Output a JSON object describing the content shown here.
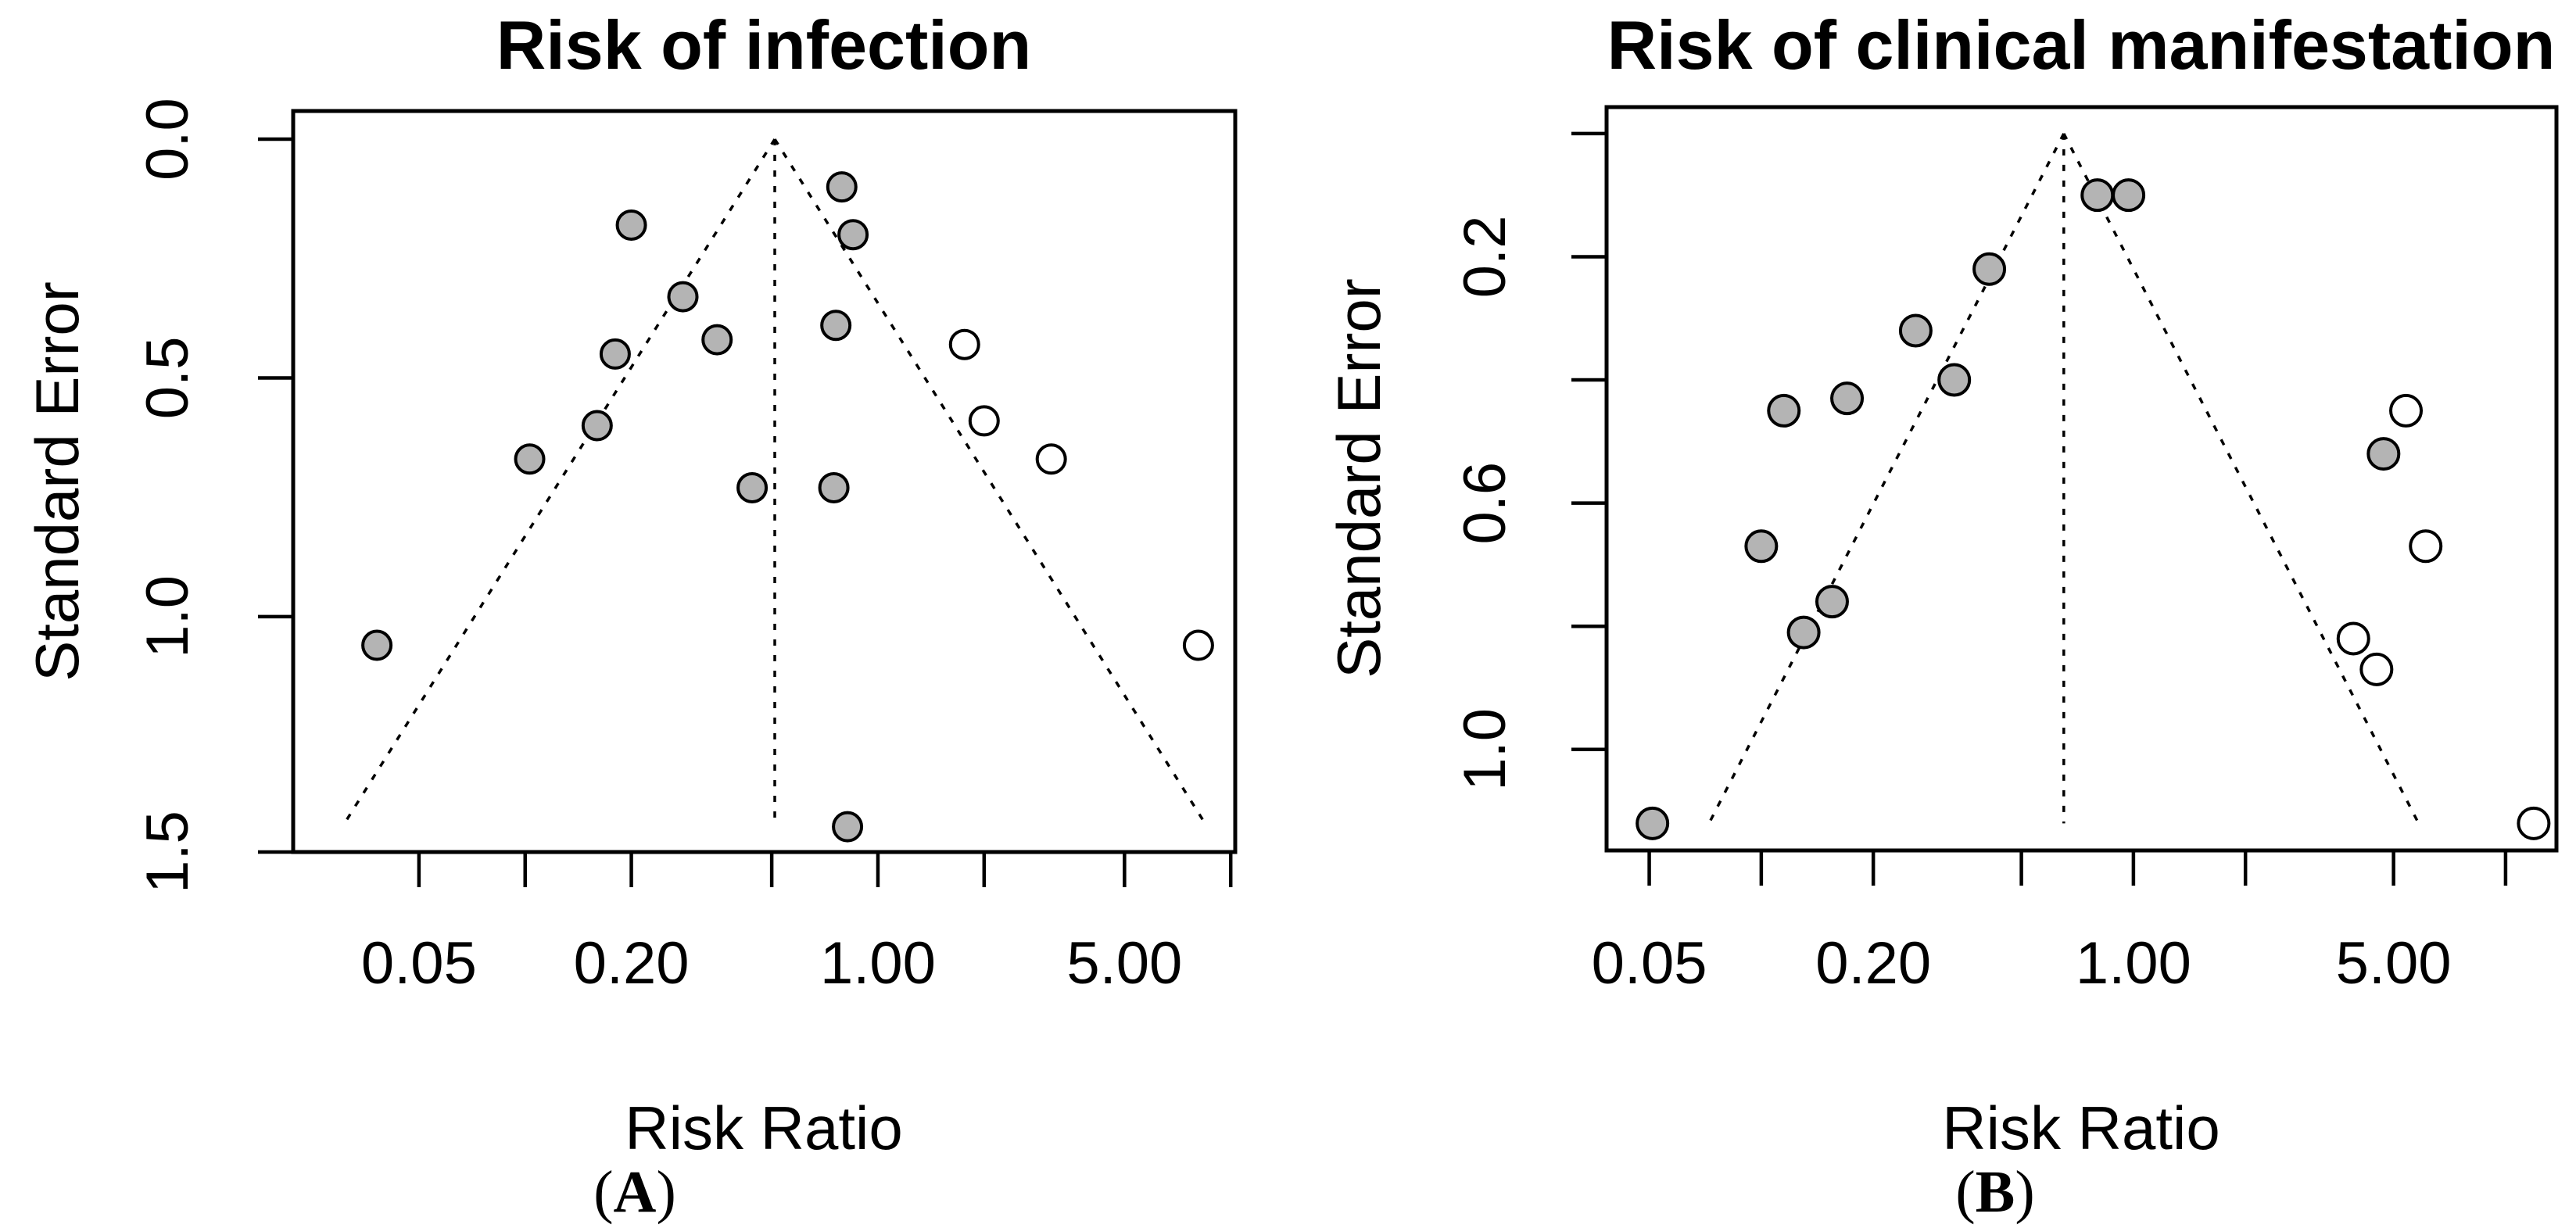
{
  "figure": {
    "background": "#ffffff",
    "description": "Two funnel plots of meta-analysis risk ratios versus standard error"
  },
  "colors": {
    "axis": "#000000",
    "gray_point_fill": "#b4b4b4",
    "white_point_fill": "#ffffff",
    "point_outline": "#000000",
    "funnel_line": "#000000"
  },
  "chart_data": [
    {
      "type": "scatter",
      "subtype": "funnel-plot",
      "title": "Risk of infection",
      "xlabel": "Risk Ratio",
      "ylabel": "Standard Error",
      "panel_letter_prefix": "(",
      "panel_letter": "A",
      "panel_letter_suffix": ")",
      "x_scale": "log",
      "y_inverted": true,
      "xlim": [
        0.022,
        10.3
      ],
      "ylim_se": [
        -0.059,
        1.493
      ],
      "grid": false,
      "pooled_rr": 0.51,
      "ci_z": 1.96,
      "funnel_se_max": 1.43,
      "x_ticks": [
        {
          "v": 0.05,
          "label": "0.05"
        },
        {
          "v": 0.1,
          "label": ""
        },
        {
          "v": 0.2,
          "label": "0.20"
        },
        {
          "v": 0.5,
          "label": ""
        },
        {
          "v": 1,
          "label": "1.00"
        },
        {
          "v": 2,
          "label": ""
        },
        {
          "v": 5,
          "label": "5.00"
        },
        {
          "v": 10,
          "label": ""
        }
      ],
      "y_ticks": [
        {
          "v": 0.0,
          "label": "0.0"
        },
        {
          "v": 0.5,
          "label": "0.5"
        },
        {
          "v": 1.0,
          "label": "1.0"
        },
        {
          "v": 1.5,
          "label": "1.5"
        }
      ],
      "series": [
        {
          "name": "shaded-studies",
          "marker": "circle",
          "fill": "#b4b4b4",
          "points_rr_se": [
            [
              0.2,
              0.18
            ],
            [
              0.28,
              0.33
            ],
            [
              0.35,
              0.42
            ],
            [
              0.18,
              0.45
            ],
            [
              0.16,
              0.6
            ],
            [
              0.103,
              0.67
            ],
            [
              0.44,
              0.73
            ],
            [
              0.75,
              0.73
            ],
            [
              0.79,
              0.1
            ],
            [
              0.85,
              0.2
            ],
            [
              0.76,
              0.39
            ],
            [
              0.038,
              1.06
            ],
            [
              0.82,
              1.44
            ]
          ]
        },
        {
          "name": "open-studies",
          "marker": "circle",
          "fill": "#ffffff",
          "points_rr_se": [
            [
              1.76,
              0.43
            ],
            [
              2.0,
              0.59
            ],
            [
              3.1,
              0.67
            ],
            [
              8.1,
              1.06
            ]
          ]
        }
      ]
    },
    {
      "type": "scatter",
      "subtype": "funnel-plot",
      "title": "Risk of clinical manifestation",
      "xlabel": "Risk Ratio",
      "ylabel": "Standard Error",
      "panel_letter_prefix": "(",
      "panel_letter": "B",
      "panel_letter_suffix": ")",
      "x_scale": "log",
      "y_inverted": true,
      "xlim": [
        0.0384,
        13.7
      ],
      "ylim_se": [
        -0.043,
        1.164
      ],
      "grid": false,
      "pooled_rr": 0.65,
      "ci_z": 1.96,
      "funnel_se_max": 1.12,
      "x_ticks": [
        {
          "v": 0.05,
          "label": "0.05"
        },
        {
          "v": 0.1,
          "label": ""
        },
        {
          "v": 0.2,
          "label": "0.20"
        },
        {
          "v": 0.5,
          "label": ""
        },
        {
          "v": 1,
          "label": "1.00"
        },
        {
          "v": 2,
          "label": ""
        },
        {
          "v": 5,
          "label": "5.00"
        },
        {
          "v": 10,
          "label": ""
        }
      ],
      "y_ticks": [
        {
          "v": 0.0,
          "label": ""
        },
        {
          "v": 0.2,
          "label": "0.2"
        },
        {
          "v": 0.4,
          "label": ""
        },
        {
          "v": 0.6,
          "label": "0.6"
        },
        {
          "v": 0.8,
          "label": ""
        },
        {
          "v": 1.0,
          "label": "1.0"
        }
      ],
      "series": [
        {
          "name": "shaded-studies",
          "marker": "circle",
          "fill": "#b4b4b4",
          "points_rr_se": [
            [
              0.8,
              0.1
            ],
            [
              0.97,
              0.1
            ],
            [
              0.41,
              0.22
            ],
            [
              0.26,
              0.32
            ],
            [
              0.33,
              0.4
            ],
            [
              0.17,
              0.43
            ],
            [
              0.115,
              0.45
            ],
            [
              0.1,
              0.67
            ],
            [
              0.13,
              0.81
            ],
            [
              0.155,
              0.76
            ],
            [
              4.7,
              0.52
            ],
            [
              0.051,
              1.12
            ]
          ]
        },
        {
          "name": "open-studies",
          "marker": "circle",
          "fill": "#ffffff",
          "points_rr_se": [
            [
              5.4,
              0.45
            ],
            [
              6.1,
              0.67
            ],
            [
              3.9,
              0.82
            ],
            [
              4.5,
              0.87
            ],
            [
              11.9,
              1.12
            ]
          ]
        }
      ]
    }
  ]
}
